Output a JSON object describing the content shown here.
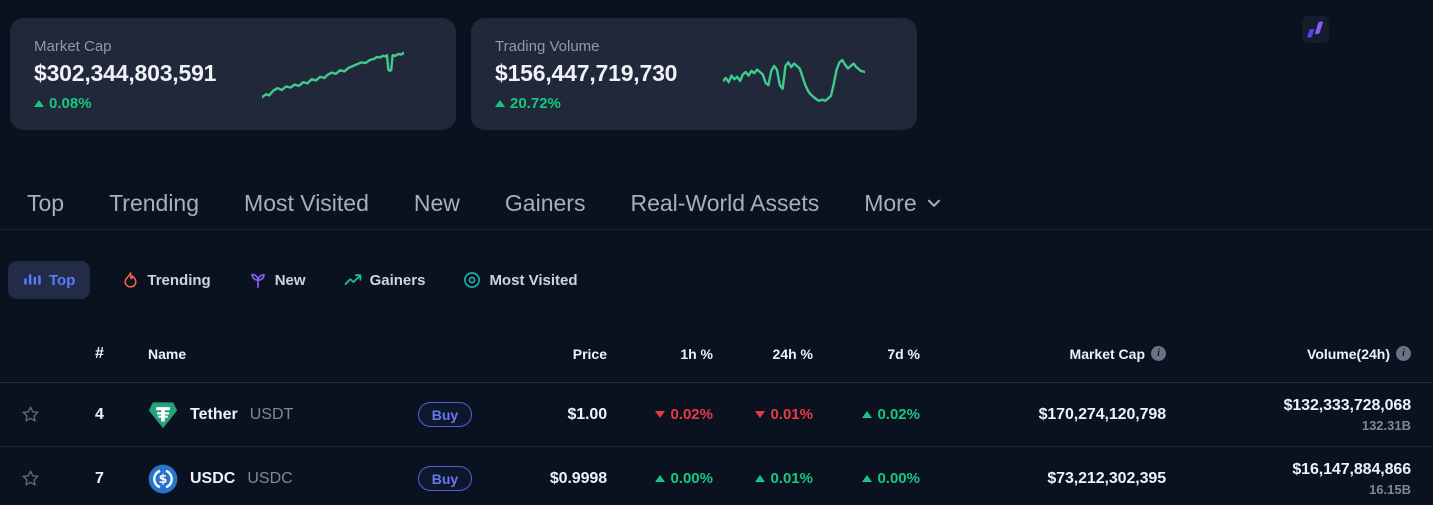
{
  "colors": {
    "bg": "#0b121f",
    "card": "#212839",
    "text": "#eef1f7",
    "muted": "#9098ab",
    "sub": "#7e8799",
    "green": "#16c784",
    "red": "#ea3943",
    "blue": "#5b7cf7",
    "divider": "#1c2433",
    "pillbg": "#222c49",
    "spark": "#3ecb8c",
    "buyb": "#4c63dd",
    "buyt": "#6379f2",
    "tether": "#26a17b",
    "usdc": "#2775ca",
    "flame": "#f4654a",
    "purple": "#8b5cf6",
    "teal": "#1fb5ae",
    "star": "#5e6678",
    "infobg": "#6a7285",
    "navtext": "#a6aebf",
    "pilltext": "#ced3de"
  },
  "stats": {
    "cards": [
      {
        "label": "Market Cap",
        "value": "$302,344,803,591",
        "change": {
          "dir": "up",
          "val": "0.08%"
        },
        "spark": [
          [
            0,
            82
          ],
          [
            3,
            77
          ],
          [
            5,
            79
          ],
          [
            8,
            71
          ],
          [
            11,
            67
          ],
          [
            14,
            70
          ],
          [
            17,
            64
          ],
          [
            20,
            66
          ],
          [
            23,
            61
          ],
          [
            26,
            63
          ],
          [
            29,
            57
          ],
          [
            32,
            59
          ],
          [
            35,
            52
          ],
          [
            38,
            54
          ],
          [
            41,
            48
          ],
          [
            44,
            50
          ],
          [
            46,
            45
          ],
          [
            49,
            41
          ],
          [
            52,
            43
          ],
          [
            55,
            37
          ],
          [
            58,
            39
          ],
          [
            61,
            33
          ],
          [
            64,
            30
          ],
          [
            67,
            27
          ],
          [
            70,
            24
          ],
          [
            73,
            25
          ],
          [
            76,
            20
          ],
          [
            79,
            18
          ],
          [
            81,
            15
          ],
          [
            83,
            16
          ],
          [
            85,
            13
          ],
          [
            87,
            14
          ],
          [
            88,
            12
          ],
          [
            89,
            36
          ],
          [
            90,
            38
          ],
          [
            91,
            37
          ],
          [
            92,
            12
          ],
          [
            94,
            13
          ],
          [
            96,
            10
          ],
          [
            98,
            11
          ],
          [
            100,
            8
          ]
        ]
      },
      {
        "label": "Trading Volume",
        "value": "$156,447,719,730",
        "change": {
          "dir": "up",
          "val": "20.72%"
        },
        "spark": [
          [
            0,
            55
          ],
          [
            2,
            50
          ],
          [
            4,
            57
          ],
          [
            6,
            46
          ],
          [
            8,
            52
          ],
          [
            10,
            48
          ],
          [
            12,
            55
          ],
          [
            14,
            44
          ],
          [
            16,
            40
          ],
          [
            18,
            46
          ],
          [
            20,
            38
          ],
          [
            22,
            42
          ],
          [
            24,
            36
          ],
          [
            26,
            40
          ],
          [
            28,
            44
          ],
          [
            30,
            58
          ],
          [
            32,
            62
          ],
          [
            34,
            38
          ],
          [
            36,
            30
          ],
          [
            38,
            36
          ],
          [
            40,
            62
          ],
          [
            42,
            68
          ],
          [
            44,
            30
          ],
          [
            46,
            24
          ],
          [
            48,
            32
          ],
          [
            50,
            26
          ],
          [
            52,
            30
          ],
          [
            54,
            34
          ],
          [
            56,
            48
          ],
          [
            58,
            62
          ],
          [
            60,
            72
          ],
          [
            62,
            78
          ],
          [
            64,
            82
          ],
          [
            66,
            86
          ],
          [
            68,
            88
          ],
          [
            70,
            86
          ],
          [
            72,
            88
          ],
          [
            74,
            84
          ],
          [
            76,
            80
          ],
          [
            78,
            60
          ],
          [
            80,
            36
          ],
          [
            82,
            24
          ],
          [
            84,
            20
          ],
          [
            86,
            28
          ],
          [
            88,
            34
          ],
          [
            90,
            30
          ],
          [
            92,
            26
          ],
          [
            94,
            32
          ],
          [
            97,
            38
          ],
          [
            100,
            40
          ]
        ]
      }
    ]
  },
  "nav": {
    "tabs": [
      "Top",
      "Trending",
      "Most Visited",
      "New",
      "Gainers",
      "Real-World Assets"
    ],
    "more_label": "More"
  },
  "filters": [
    {
      "label": "Top",
      "icon": "bar-chart",
      "active": true
    },
    {
      "label": "Trending",
      "icon": "flame",
      "active": false
    },
    {
      "label": "New",
      "icon": "seedling",
      "active": false
    },
    {
      "label": "Gainers",
      "icon": "trending-up",
      "active": false
    },
    {
      "label": "Most Visited",
      "icon": "eye",
      "active": false
    }
  ],
  "table": {
    "buy_label": "Buy",
    "headers": {
      "num": "#",
      "name": "Name",
      "price": "Price",
      "h1": "1h %",
      "h24": "24h %",
      "d7": "7d %",
      "mcap": "Market Cap",
      "vol": "Volume(24h)"
    },
    "rows": [
      {
        "rank": "4",
        "name": "Tether",
        "symbol": "USDT",
        "price": "$1.00",
        "h1": {
          "dir": "down",
          "val": "0.02%"
        },
        "h24": {
          "dir": "down",
          "val": "0.01%"
        },
        "d7": {
          "dir": "up",
          "val": "0.02%"
        },
        "market_cap": "$170,274,120,798",
        "volume": "$132,333,728,068",
        "volume_sub": "132.31B"
      },
      {
        "rank": "7",
        "name": "USDC",
        "symbol": "USDC",
        "price": "$0.9998",
        "h1": {
          "dir": "up",
          "val": "0.00%"
        },
        "h24": {
          "dir": "up",
          "val": "0.01%"
        },
        "d7": {
          "dir": "up",
          "val": "0.00%"
        },
        "market_cap": "$73,212,302,395",
        "volume": "$16,147,884,866",
        "volume_sub": "16.15B"
      }
    ]
  }
}
